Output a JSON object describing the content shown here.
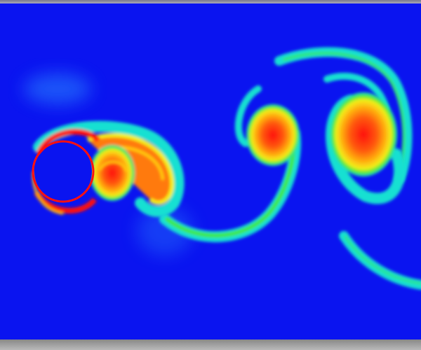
{
  "image": {
    "subject": "",
    "colors": {
      "background": "#0a14f0",
      "low": "#2a88ff",
      "cyan": "#17e0d2",
      "green": "#3fe83a",
      "yellow": "#f3f01a",
      "orange": "#ff8a10",
      "red": "#ff1010",
      "frame": "#9a9a9a"
    }
  }
}
